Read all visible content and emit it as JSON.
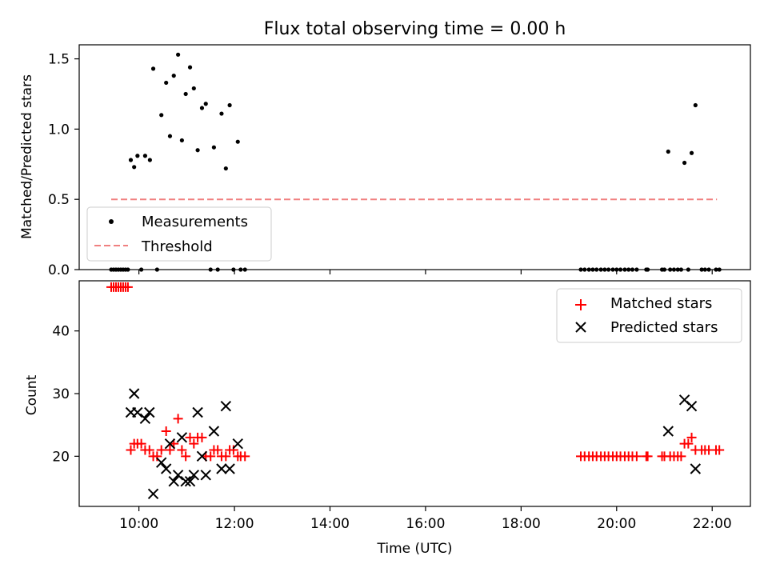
{
  "title": "Flux total observing time = 0.00 h",
  "colors": {
    "measurement": "#000000",
    "threshold": "#f08080",
    "matched": "#ff0000",
    "predicted": "#000000",
    "axes": "#000000"
  },
  "chart_data": [
    {
      "type": "scatter",
      "panel": "top",
      "title": "Flux total observing time = 0.00 h",
      "xlabel": "",
      "ylabel": "Matched/Predicted stars",
      "xlim": [
        8.75,
        22.8
      ],
      "ylim": [
        0,
        1.6
      ],
      "yticks": [
        0.0,
        0.5,
        1.0,
        1.5
      ],
      "ytick_labels": [
        "0.0",
        "0.5",
        "1.0",
        "1.5"
      ],
      "xticks": [
        10,
        12,
        14,
        16,
        18,
        20,
        22
      ],
      "xtick_labels": [
        "",
        "",
        "",
        "",
        "",
        "",
        ""
      ],
      "grid": false,
      "legend_position": "lower-left",
      "series": [
        {
          "name": "Measurements",
          "marker": "dot",
          "x": [
            9.83,
            9.9,
            9.97,
            10.13,
            10.23,
            10.3,
            10.47,
            10.57,
            10.65,
            10.73,
            10.82,
            10.9,
            10.98,
            11.07,
            11.15,
            11.23,
            11.32,
            11.4,
            11.57,
            11.73,
            11.82,
            11.9,
            12.07,
            21.08,
            21.42,
            21.57,
            21.65,
            9.42,
            9.47,
            9.52,
            9.57,
            9.62,
            9.67,
            9.72,
            9.77,
            10.05,
            10.38,
            11.5,
            11.65,
            11.98,
            12.13,
            12.22,
            19.25,
            19.33,
            19.42,
            19.5,
            19.58,
            19.67,
            19.75,
            19.83,
            19.92,
            20.0,
            20.08,
            20.17,
            20.25,
            20.33,
            20.42,
            20.62,
            20.65,
            20.95,
            21.0,
            21.12,
            21.2,
            21.28,
            21.35,
            21.5,
            21.78,
            21.85,
            21.93,
            22.08,
            22.15
          ],
          "y": [
            0.78,
            0.73,
            0.81,
            0.81,
            0.78,
            1.43,
            1.1,
            1.33,
            0.95,
            1.38,
            1.53,
            0.92,
            1.25,
            1.44,
            1.29,
            0.85,
            1.15,
            1.18,
            0.87,
            1.11,
            0.72,
            1.17,
            0.91,
            0.84,
            0.76,
            0.83,
            1.17,
            0,
            0,
            0,
            0,
            0,
            0,
            0,
            0,
            0,
            0,
            0,
            0,
            0,
            0,
            0,
            0,
            0,
            0,
            0,
            0,
            0,
            0,
            0,
            0,
            0,
            0,
            0,
            0,
            0,
            0,
            0,
            0,
            0,
            0,
            0,
            0,
            0,
            0,
            0,
            0,
            0,
            0,
            0,
            0
          ]
        },
        {
          "name": "Threshold",
          "kind": "dashed-line",
          "x": [
            9.42,
            22.1
          ],
          "y": [
            0.5,
            0.5
          ]
        }
      ]
    },
    {
      "type": "scatter",
      "panel": "bottom",
      "xlabel": "Time (UTC)",
      "ylabel": "Count",
      "xlim": [
        8.75,
        22.8
      ],
      "ylim": [
        12,
        48
      ],
      "yticks": [
        20,
        30,
        40
      ],
      "ytick_labels": [
        "20",
        "30",
        "40"
      ],
      "xticks": [
        10,
        12,
        14,
        16,
        18,
        20,
        22
      ],
      "xtick_labels": [
        "10:00",
        "12:00",
        "14:00",
        "16:00",
        "18:00",
        "20:00",
        "22:00"
      ],
      "grid": false,
      "legend_position": "upper-right",
      "series": [
        {
          "name": "Matched stars",
          "marker": "plus",
          "x": [
            9.42,
            9.47,
            9.52,
            9.57,
            9.62,
            9.67,
            9.72,
            9.77,
            9.83,
            9.9,
            9.97,
            10.05,
            10.13,
            10.22,
            10.3,
            10.38,
            10.47,
            10.57,
            10.65,
            10.73,
            10.82,
            10.9,
            10.98,
            11.07,
            11.15,
            11.23,
            11.32,
            11.4,
            11.5,
            11.57,
            11.65,
            11.73,
            11.82,
            11.9,
            11.98,
            12.07,
            12.13,
            12.22,
            19.25,
            19.33,
            19.42,
            19.5,
            19.58,
            19.67,
            19.75,
            19.83,
            19.92,
            20.0,
            20.08,
            20.17,
            20.25,
            20.33,
            20.42,
            20.62,
            20.65,
            20.95,
            21.0,
            21.12,
            21.2,
            21.28,
            21.35,
            21.42,
            21.5,
            21.57,
            21.65,
            21.78,
            21.85,
            21.93,
            22.08,
            22.15
          ],
          "y": [
            47,
            47,
            47,
            47,
            47,
            47,
            47,
            47,
            21,
            22,
            22,
            22,
            21,
            21,
            20,
            20,
            21,
            24,
            21,
            22,
            26,
            21,
            20,
            23,
            22,
            23,
            23,
            20,
            20,
            21,
            21,
            20,
            20,
            21,
            21,
            20,
            20,
            20,
            20,
            20,
            20,
            20,
            20,
            20,
            20,
            20,
            20,
            20,
            20,
            20,
            20,
            20,
            20,
            20,
            20,
            20,
            20,
            20,
            20,
            20,
            20,
            22,
            22,
            23,
            21,
            21,
            21,
            21,
            21,
            21
          ]
        },
        {
          "name": "Predicted stars",
          "marker": "x",
          "x": [
            9.83,
            9.9,
            9.97,
            10.13,
            10.22,
            10.3,
            10.47,
            10.57,
            10.65,
            10.73,
            10.82,
            10.9,
            10.98,
            11.07,
            11.15,
            11.23,
            11.32,
            11.4,
            11.57,
            11.73,
            11.82,
            11.9,
            12.07,
            21.08,
            21.42,
            21.57,
            21.65
          ],
          "y": [
            27,
            30,
            27,
            26,
            27,
            14,
            19,
            18,
            22,
            16,
            17,
            23,
            16,
            16,
            17,
            27,
            20,
            17,
            24,
            18,
            28,
            18,
            22,
            24,
            29,
            28,
            18
          ]
        }
      ]
    }
  ]
}
